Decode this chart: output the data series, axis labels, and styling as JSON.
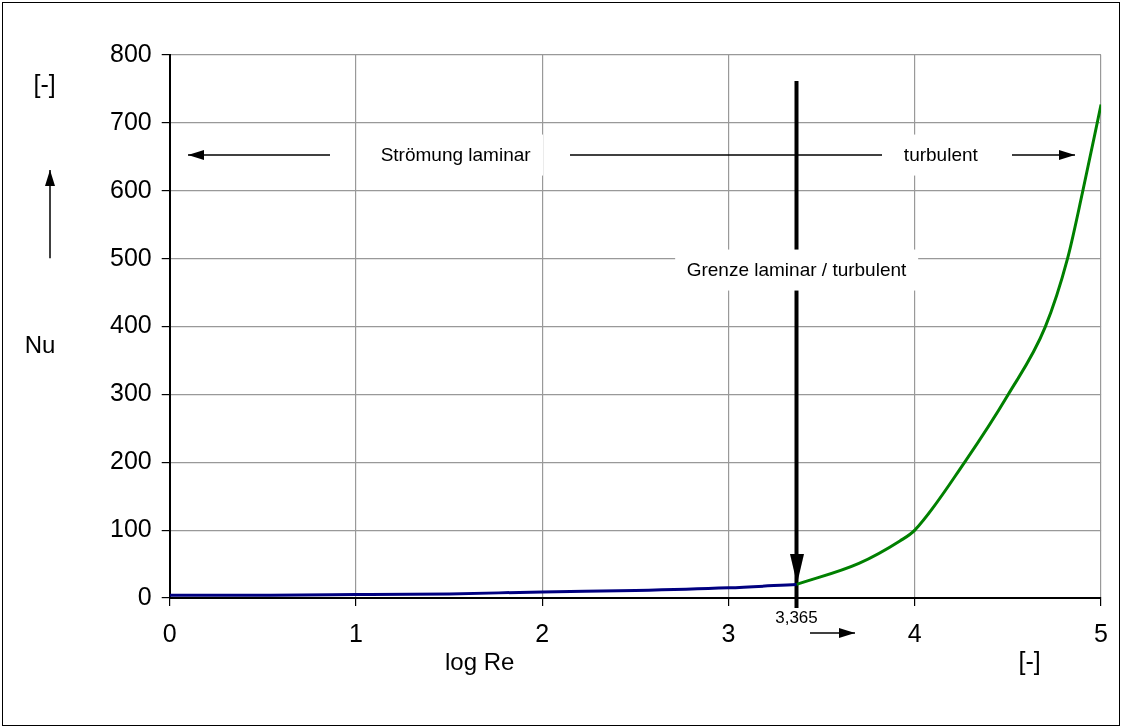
{
  "chart_data": {
    "type": "line",
    "xlabel": "log Re",
    "ylabel": "Nu",
    "xlim": [
      0,
      5
    ],
    "xticks": [
      0,
      1,
      2,
      3,
      4,
      5
    ],
    "ylim": [
      0,
      800
    ],
    "yticks": [
      0,
      100,
      200,
      300,
      400,
      500,
      600,
      700,
      800
    ],
    "grid": true,
    "legend": false,
    "marker": "none",
    "line_style": "solid",
    "series": [
      {
        "color": "#000080",
        "x": [
          0,
          0.5,
          1,
          1.5,
          2,
          2.5,
          3,
          3.365
        ],
        "values": [
          4,
          4,
          5,
          6,
          9,
          11,
          15,
          20
        ]
      },
      {
        "color": "#008000",
        "x": [
          3.365,
          3.7,
          3.92,
          4.0,
          4.27,
          4.5,
          4.7,
          4.82,
          4.9,
          5.0
        ],
        "values": [
          20,
          51,
          84,
          100,
          201,
          299,
          399,
          500,
          597,
          727
        ]
      }
    ],
    "ref_lines": [
      {
        "axis": "x",
        "value": 3.365,
        "label": "3,365",
        "color": "#000000"
      }
    ],
    "annotations": [
      "Strömung laminar",
      "turbulent",
      {
        "text": "Grenze laminar / turbulent",
        "x": 3.365,
        "y": 483
      },
      "[-]",
      "[-]"
    ]
  }
}
